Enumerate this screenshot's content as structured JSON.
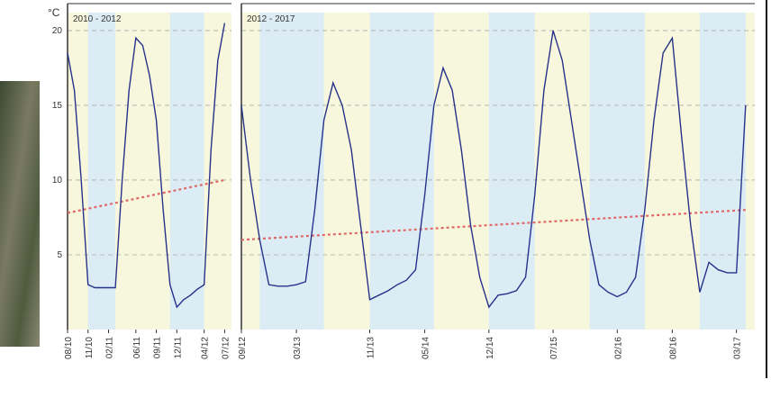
{
  "chart_data": [
    {
      "type": "line",
      "title": "2010 - 2012",
      "ylabel": "°C",
      "x": [
        "2010-08",
        "2010-09",
        "2010-10",
        "2010-11",
        "2010-12",
        "2011-01",
        "2011-02",
        "2011-03",
        "2011-04",
        "2011-05",
        "2011-06",
        "2011-07",
        "2011-08",
        "2011-09",
        "2011-10",
        "2011-11",
        "2011-12",
        "2012-01",
        "2012-02",
        "2012-03",
        "2012-04",
        "2012-05",
        "2012-06",
        "2012-07"
      ],
      "series": [
        {
          "color": "#27338a",
          "values": [
            18.5,
            16,
            10,
            3,
            2.8,
            2.8,
            2.8,
            2.8,
            10,
            16,
            19.5,
            19,
            17,
            14,
            8,
            3,
            1.5,
            2,
            2.3,
            2.7,
            3,
            12,
            18,
            20.5
          ]
        }
      ],
      "trend": {
        "x": [
          "2010-08",
          "2012-07"
        ],
        "values": [
          7.8,
          10
        ],
        "color": "#e06868"
      },
      "bands": [
        [
          "2010-11",
          "2011-03"
        ],
        [
          "2011-11",
          "2012-04"
        ]
      ],
      "band_color": "#dcecf5",
      "background": "#f7f7dd",
      "xlim": [
        "2010-08",
        "2012-08"
      ],
      "xticks": [
        {
          "value": "2010-08",
          "label": "08/10"
        },
        {
          "value": "2010-11",
          "label": "11/10"
        },
        {
          "value": "2011-02",
          "label": "02/11"
        },
        {
          "value": "2011-06",
          "label": "06/11"
        },
        {
          "value": "2011-09",
          "label": "09/11"
        },
        {
          "value": "2011-12",
          "label": "12/11"
        },
        {
          "value": "2012-04",
          "label": "04/12"
        },
        {
          "value": "2012-07",
          "label": "07/12"
        }
      ],
      "ylim": [
        0,
        21.2
      ],
      "yticks": [
        5,
        10,
        15,
        20
      ],
      "grid": true
    },
    {
      "type": "line",
      "title": "2012 - 2017",
      "x": [
        "2012-09",
        "2012-10",
        "2012-11",
        "2012-12",
        "2013-01",
        "2013-02",
        "2013-03",
        "2013-04",
        "2013-05",
        "2013-06",
        "2013-07",
        "2013-08",
        "2013-09",
        "2013-10",
        "2013-11",
        "2013-12",
        "2014-01",
        "2014-02",
        "2014-03",
        "2014-04",
        "2014-05",
        "2014-06",
        "2014-07",
        "2014-08",
        "2014-09",
        "2014-10",
        "2014-11",
        "2014-12",
        "2015-01",
        "2015-02",
        "2015-03",
        "2015-04",
        "2015-05",
        "2015-06",
        "2015-07",
        "2015-08",
        "2015-09",
        "2015-10",
        "2015-11",
        "2015-12",
        "2016-01",
        "2016-02",
        "2016-03",
        "2016-04",
        "2016-05",
        "2016-06",
        "2016-07",
        "2016-08",
        "2016-09",
        "2016-10",
        "2016-11",
        "2016-12",
        "2017-01",
        "2017-02",
        "2017-03",
        "2017-04"
      ],
      "series": [
        {
          "color": "#27338a",
          "values": [
            15,
            10,
            6,
            3,
            2.9,
            2.9,
            3,
            3.2,
            8,
            14,
            16.5,
            15,
            12,
            7,
            2,
            2.3,
            2.6,
            3,
            3.3,
            4,
            9,
            15,
            17.5,
            16,
            12,
            7,
            3.5,
            1.5,
            2.3,
            2.4,
            2.6,
            3.5,
            9,
            16,
            20,
            18,
            14,
            10,
            6,
            3,
            2.5,
            2.2,
            2.5,
            3.5,
            8,
            14,
            18.5,
            19.5,
            13,
            7,
            2.5,
            4.5,
            4,
            3.8,
            3.8,
            15
          ]
        }
      ],
      "trend": {
        "x": [
          "2012-09",
          "2017-04"
        ],
        "values": [
          6,
          8
        ],
        "color": "#e06868"
      },
      "bands": [
        [
          "2012-11",
          "2013-06"
        ],
        [
          "2013-11",
          "2014-06"
        ],
        [
          "2014-12",
          "2015-05"
        ],
        [
          "2015-11",
          "2016-05"
        ],
        [
          "2016-11",
          "2017-04"
        ]
      ],
      "band_color": "#dcecf5",
      "background": "#f7f7dd",
      "xlim": [
        "2012-09",
        "2017-05"
      ],
      "xticks": [
        {
          "value": "2012-09",
          "label": "09/12"
        },
        {
          "value": "2013-03",
          "label": "03/13"
        },
        {
          "value": "2013-11",
          "label": "11/13"
        },
        {
          "value": "2014-05",
          "label": "05/14"
        },
        {
          "value": "2014-12",
          "label": "12/14"
        },
        {
          "value": "2015-07",
          "label": "07/15"
        },
        {
          "value": "2016-02",
          "label": "02/16"
        },
        {
          "value": "2016-08",
          "label": "08/16"
        },
        {
          "value": "2017-03",
          "label": "03/17"
        }
      ],
      "ylim": [
        0,
        21.2
      ]
    }
  ]
}
